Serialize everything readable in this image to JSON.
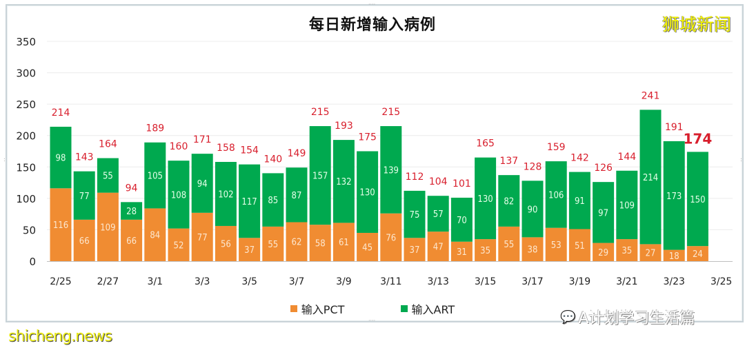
{
  "chart_data": {
    "type": "bar",
    "stacked": true,
    "title": "每日新增输入病例",
    "xlabel": "",
    "ylabel": "",
    "ylim": [
      0,
      350
    ],
    "yticks": [
      0,
      50,
      100,
      150,
      200,
      250,
      300,
      350
    ],
    "grid": true,
    "legend_position": "bottom",
    "categories": [
      "2/25",
      "2/26",
      "2/27",
      "2/28",
      "3/1",
      "3/2",
      "3/3",
      "3/4",
      "3/5",
      "3/6",
      "3/7",
      "3/8",
      "3/9",
      "3/10",
      "3/11",
      "3/12",
      "3/13",
      "3/14",
      "3/15",
      "3/16",
      "3/17",
      "3/18",
      "3/19",
      "3/20",
      "3/21",
      "3/22",
      "3/23",
      "3/24",
      "3/25"
    ],
    "xtick_labels": [
      "2/25",
      "2/27",
      "3/1",
      "3/3",
      "3/5",
      "3/7",
      "3/9",
      "3/11",
      "3/13",
      "3/15",
      "3/17",
      "3/19",
      "3/21",
      "3/23",
      "3/25"
    ],
    "series": [
      {
        "name": "输入PCT",
        "color": "#f08c32",
        "values": [
          116,
          66,
          109,
          66,
          84,
          52,
          77,
          56,
          37,
          55,
          62,
          58,
          61,
          45,
          76,
          37,
          47,
          31,
          35,
          55,
          38,
          53,
          51,
          29,
          35,
          27,
          18,
          24,
          null
        ]
      },
      {
        "name": "输入ART",
        "color": "#00a94f",
        "values": [
          98,
          77,
          55,
          28,
          105,
          108,
          94,
          102,
          117,
          85,
          87,
          157,
          132,
          130,
          139,
          75,
          57,
          70,
          130,
          82,
          90,
          106,
          91,
          97,
          109,
          214,
          173,
          150,
          null
        ]
      }
    ],
    "totals": [
      214,
      143,
      164,
      94,
      189,
      160,
      171,
      158,
      154,
      140,
      149,
      215,
      193,
      175,
      215,
      112,
      104,
      101,
      165,
      137,
      128,
      159,
      142,
      126,
      144,
      241,
      191,
      174,
      null
    ],
    "highlight_total_index": 27,
    "total_label_color": "#d81e2c"
  },
  "brand": "狮城新闻",
  "watermarks": {
    "left": "shicheng.news",
    "right": "A计划学习生活篇"
  }
}
